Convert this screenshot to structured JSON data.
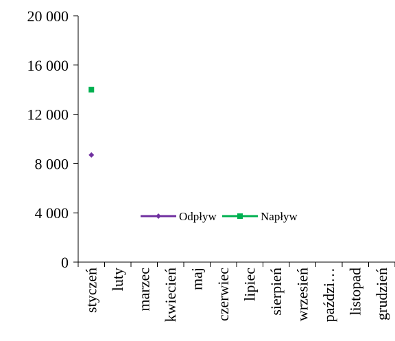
{
  "chart_data": {
    "type": "line",
    "title": "",
    "xlabel": "",
    "ylabel": "",
    "categories": [
      "styczeń",
      "luty",
      "marzec",
      "kwiecień",
      "maj",
      "czerwiec",
      "lipiec",
      "sierpień",
      "wrzesień",
      "paździ…",
      "listopad",
      "grudzień"
    ],
    "series": [
      {
        "name": "Odpływ",
        "values": [
          8700,
          null,
          null,
          null,
          null,
          null,
          null,
          null,
          null,
          null,
          null,
          null
        ],
        "color": "#7030A0",
        "marker": "diamond"
      },
      {
        "name": "Napływ",
        "values": [
          14000,
          null,
          null,
          null,
          null,
          null,
          null,
          null,
          null,
          null,
          null,
          null
        ],
        "color": "#00B050",
        "marker": "square"
      }
    ],
    "yticks": [
      0,
      4000,
      8000,
      12000,
      16000,
      20000
    ],
    "ytick_labels": [
      "0",
      "4 000",
      "8 000",
      "12 000",
      "16 000",
      "20 000"
    ],
    "ylim": [
      0,
      20000
    ],
    "grid": false,
    "legend": "inside-bottom-center"
  }
}
